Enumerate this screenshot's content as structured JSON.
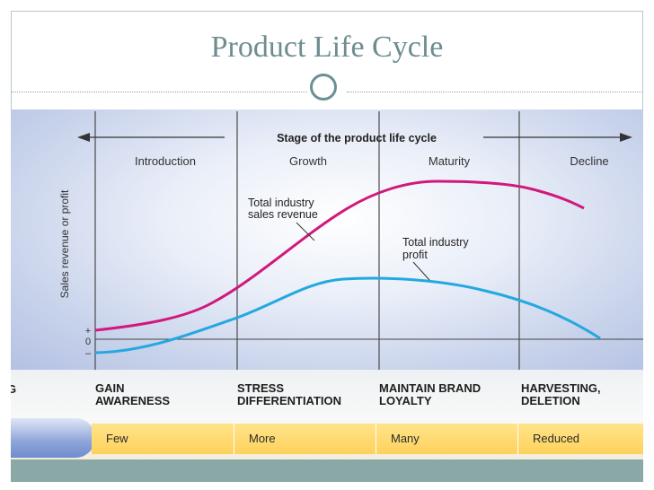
{
  "title": "Product Life Cycle",
  "chart_data": {
    "type": "line",
    "header_label": "Stage of the product life cycle",
    "stages": [
      "Introduction",
      "Growth",
      "Maturity",
      "Decline"
    ],
    "ylabel": "Sales revenue or profit",
    "y_ticks": [
      "+",
      "0",
      "–"
    ],
    "annotations": [
      {
        "text": "Total industry\nsales revenue"
      },
      {
        "text": "Total industry\nprofit"
      }
    ],
    "colors": {
      "revenue": "#d0197c",
      "profit": "#24a8e0",
      "axis": "#333333"
    }
  },
  "band": {
    "cut_text": "G",
    "actions": [
      "GAIN\nAWARENESS",
      "STRESS\nDIFFERENTIATION",
      "MAINTAIN BRAND\nLOYALTY",
      "HARVESTING,\nDELETION"
    ],
    "competitors": [
      "Few",
      "More",
      "Many",
      "Reduced"
    ]
  }
}
